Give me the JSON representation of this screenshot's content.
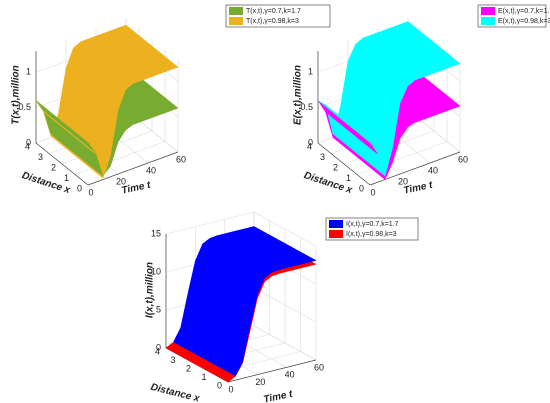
{
  "chart_data": [
    {
      "type": "surface3d",
      "zlabel": "T(x,t),million",
      "xlabel": "Distance x",
      "tlabel": "Time t",
      "t": [
        0,
        5,
        10,
        15,
        20,
        25,
        30,
        35,
        40,
        50,
        60
      ],
      "series": [
        {
          "name": "T(x,t),γ=0.7,k=1.7",
          "color": "#77ac30",
          "values": [
            0.6,
            0.42,
            0.05,
            0.15,
            0.45,
            0.58,
            0.62,
            0.62,
            0.62,
            0.62,
            0.62
          ]
        },
        {
          "name": "T(x,t),γ=0.98,k=3",
          "color": "#edb120",
          "values": [
            0.6,
            0.4,
            0.02,
            0.3,
            0.9,
            1.15,
            1.2,
            1.2,
            1.2,
            1.2,
            1.2
          ]
        }
      ],
      "xlim": [
        0,
        4
      ],
      "xticks": [
        0,
        1,
        2,
        3,
        4
      ],
      "tlim": [
        0,
        60
      ],
      "tticks": [
        0,
        20,
        40,
        60
      ],
      "zlim": [
        0,
        1.3
      ],
      "zticks": [
        0,
        0.5,
        1
      ],
      "grid": true
    },
    {
      "type": "surface3d",
      "zlabel": "E(x,t),million",
      "xlabel": "Distance x",
      "tlabel": "Time t",
      "t": [
        0,
        5,
        10,
        15,
        20,
        25,
        30,
        35,
        40,
        50,
        60
      ],
      "series": [
        {
          "name": "E(x,t),γ=0.7,k=1.7",
          "color": "#ff00ff",
          "values": [
            0.6,
            0.4,
            0.0,
            0.2,
            0.5,
            0.62,
            0.65,
            0.65,
            0.65,
            0.65,
            0.65
          ]
        },
        {
          "name": "E(x,t),γ=0.98,k=3",
          "color": "#00ffff",
          "values": [
            0.6,
            0.5,
            0.05,
            0.4,
            1.0,
            1.2,
            1.25,
            1.25,
            1.25,
            1.25,
            1.25
          ]
        }
      ],
      "xlim": [
        0,
        4
      ],
      "xticks": [
        0,
        1,
        2,
        3,
        4
      ],
      "tlim": [
        0,
        60
      ],
      "tticks": [
        0,
        20,
        40,
        60
      ],
      "zlim": [
        0,
        1.3
      ],
      "zticks": [
        0,
        0.5,
        1
      ],
      "grid": true
    },
    {
      "type": "surface3d",
      "zlabel": "I(x,t),million",
      "xlabel": "Distance x",
      "tlabel": "Time t",
      "t": [
        0,
        5,
        10,
        15,
        20,
        25,
        30,
        35,
        40,
        50,
        60
      ],
      "series": [
        {
          "name": "I(x,t),γ=0.7,k=1.7",
          "color": "#0000ff",
          "values": [
            0,
            0.5,
            2.2,
            6.5,
            10.5,
            12.5,
            13,
            13.1,
            13.1,
            13.1,
            13.1
          ]
        },
        {
          "name": "I(x,t),γ=0.98,k=3",
          "color": "#ff0000",
          "values": [
            0,
            0.5,
            2,
            6,
            10,
            12,
            12.5,
            12.6,
            12.6,
            12.6,
            12.6
          ]
        }
      ],
      "xlim": [
        0,
        4
      ],
      "xticks": [
        0,
        1,
        2,
        3,
        4
      ],
      "tlim": [
        0,
        60
      ],
      "tticks": [
        0,
        20,
        40,
        60
      ],
      "zlim": [
        0,
        15
      ],
      "zticks": [
        0,
        5,
        10,
        15
      ],
      "grid": true
    }
  ]
}
